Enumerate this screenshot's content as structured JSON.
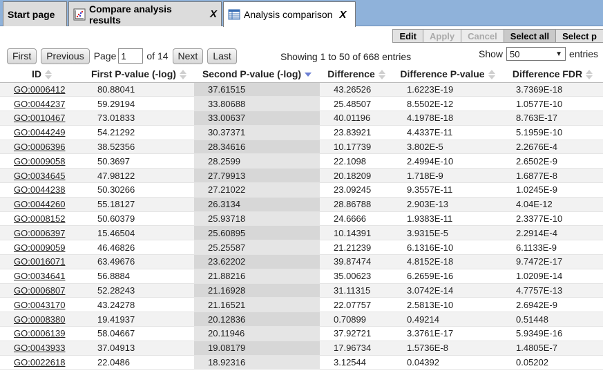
{
  "tabs": [
    {
      "label": "Start page",
      "icon": "none",
      "closable": false
    },
    {
      "label": "Compare analysis results",
      "icon": "chart-icon",
      "closable": true,
      "close": "X"
    },
    {
      "label": "Analysis comparison",
      "icon": "table-icon",
      "closable": true,
      "close": "X"
    }
  ],
  "toolbar": {
    "edit": "Edit",
    "apply": "Apply",
    "cancel": "Cancel",
    "select_all": "Select all",
    "select_p": "Select p"
  },
  "pager": {
    "first": "First",
    "previous": "Previous",
    "page_label": "Page",
    "page_value": "1",
    "of_label": "of 14",
    "next": "Next",
    "last": "Last"
  },
  "showing": "Showing 1 to 50 of 668 entries",
  "show": {
    "label": "Show",
    "value": "50",
    "suffix": "entries"
  },
  "columns": [
    "ID",
    "First P-value (-log)",
    "Second P-value (-log)",
    "Difference",
    "Difference P-value",
    "Difference FDR"
  ],
  "sorted_column": 2,
  "rows": [
    [
      "GO:0006412",
      "80.88041",
      "37.61515",
      "43.26526",
      "1.6223E-19",
      "3.7369E-18"
    ],
    [
      "GO:0044237",
      "59.29194",
      "33.80688",
      "25.48507",
      "8.5502E-12",
      "1.0577E-10"
    ],
    [
      "GO:0010467",
      "73.01833",
      "33.00637",
      "40.01196",
      "4.1978E-18",
      "8.763E-17"
    ],
    [
      "GO:0044249",
      "54.21292",
      "30.37371",
      "23.83921",
      "4.4337E-11",
      "5.1959E-10"
    ],
    [
      "GO:0006396",
      "38.52356",
      "28.34616",
      "10.17739",
      "3.802E-5",
      "2.2676E-4"
    ],
    [
      "GO:0009058",
      "50.3697",
      "28.2599",
      "22.1098",
      "2.4994E-10",
      "2.6502E-9"
    ],
    [
      "GO:0034645",
      "47.98122",
      "27.79913",
      "20.18209",
      "1.718E-9",
      "1.6877E-8"
    ],
    [
      "GO:0044238",
      "50.30266",
      "27.21022",
      "23.09245",
      "9.3557E-11",
      "1.0245E-9"
    ],
    [
      "GO:0044260",
      "55.18127",
      "26.3134",
      "28.86788",
      "2.903E-13",
      "4.04E-12"
    ],
    [
      "GO:0008152",
      "50.60379",
      "25.93718",
      "24.6666",
      "1.9383E-11",
      "2.3377E-10"
    ],
    [
      "GO:0006397",
      "15.46504",
      "25.60895",
      "10.14391",
      "3.9315E-5",
      "2.2914E-4"
    ],
    [
      "GO:0009059",
      "46.46826",
      "25.25587",
      "21.21239",
      "6.1316E-10",
      "6.1133E-9"
    ],
    [
      "GO:0016071",
      "63.49676",
      "23.62202",
      "39.87474",
      "4.8152E-18",
      "9.7472E-17"
    ],
    [
      "GO:0034641",
      "56.8884",
      "21.88216",
      "35.00623",
      "6.2659E-16",
      "1.0209E-14"
    ],
    [
      "GO:0006807",
      "52.28243",
      "21.16928",
      "31.11315",
      "3.0742E-14",
      "4.7757E-13"
    ],
    [
      "GO:0043170",
      "43.24278",
      "21.16521",
      "22.07757",
      "2.5813E-10",
      "2.6942E-9"
    ],
    [
      "GO:0008380",
      "19.41937",
      "20.12836",
      "0.70899",
      "0.49214",
      "0.51448"
    ],
    [
      "GO:0006139",
      "58.04667",
      "20.11946",
      "37.92721",
      "3.3761E-17",
      "5.9349E-16"
    ],
    [
      "GO:0043933",
      "37.04913",
      "19.08179",
      "17.96734",
      "1.5736E-8",
      "1.4805E-7"
    ],
    [
      "GO:0022618",
      "22.0486",
      "18.92316",
      "3.12544",
      "0.04392",
      "0.05202"
    ]
  ]
}
